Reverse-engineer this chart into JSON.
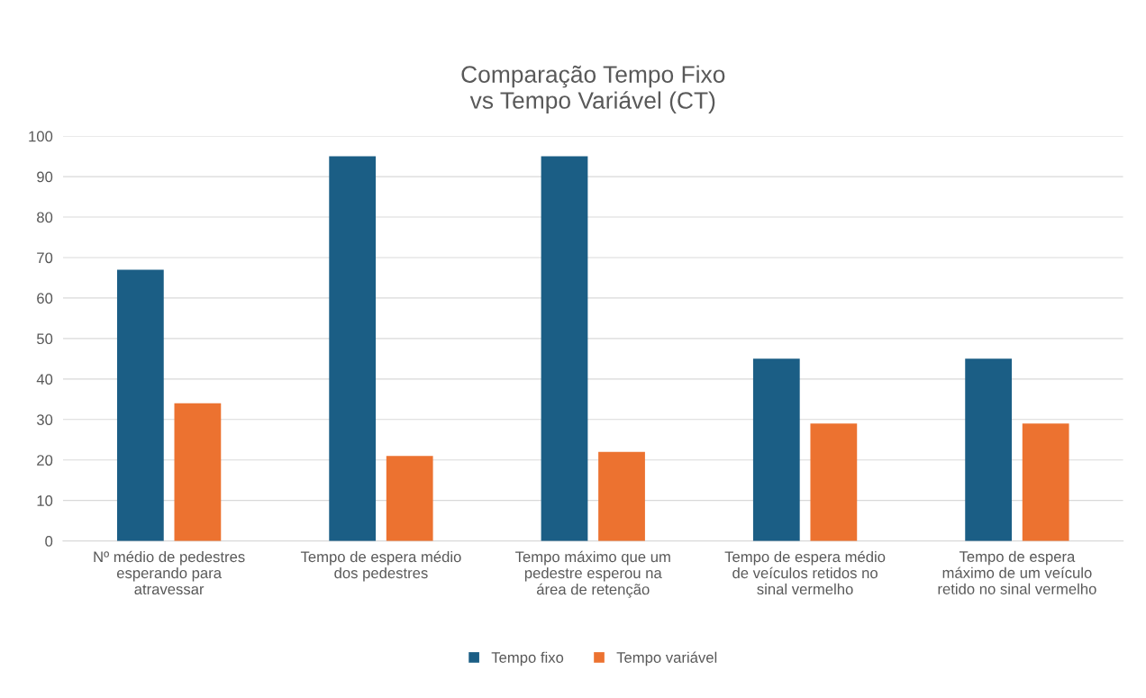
{
  "chart_data": {
    "type": "bar",
    "title": "Comparação Tempo Fixo\nvs Tempo Variável (CT)",
    "categories": [
      "Nº médio de pedestres\nesperando para\natravessar",
      "Tempo de espera médio\ndos pedestres",
      "Tempo máximo que um\npedestre esperou na\nárea de retenção",
      "Tempo de espera médio\nde veículos retidos no\nsinal vermelho",
      "Tempo de espera\nmáximo de um veículo\nretido no sinal vermelho"
    ],
    "series": [
      {
        "name": "Tempo fixo",
        "color": "#1b5e85",
        "values": [
          67,
          95,
          95,
          45,
          45
        ]
      },
      {
        "name": "Tempo variável",
        "color": "#ec7230",
        "values": [
          34,
          21,
          22,
          29,
          29
        ]
      }
    ],
    "ylim": [
      0,
      100
    ],
    "yticks": [
      0,
      10,
      20,
      30,
      40,
      50,
      60,
      70,
      80,
      90,
      100
    ],
    "grid": "y",
    "legend": "bottom"
  }
}
